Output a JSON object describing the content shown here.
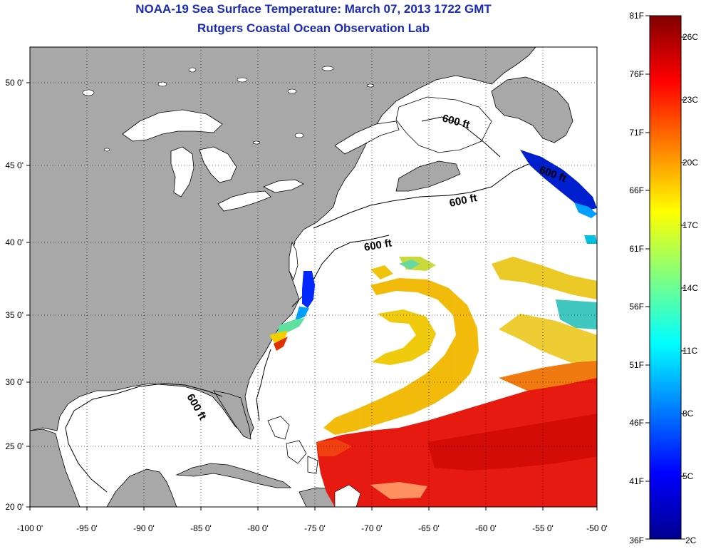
{
  "header": {
    "title_line1": "NOAA-19 Sea Surface Temperature:  March 07, 2013 1722 GMT",
    "title_line2": "Rutgers Coastal Ocean Observation Lab"
  },
  "map": {
    "lon_range": [
      -100,
      -50
    ],
    "lat_range": [
      20,
      52
    ],
    "lon_ticks": [
      {
        "value": -100,
        "label": "-100 0'"
      },
      {
        "value": -95,
        "label": "-95 0'"
      },
      {
        "value": -90,
        "label": "-90 0'"
      },
      {
        "value": -85,
        "label": "-85 0'"
      },
      {
        "value": -80,
        "label": "-80 0'"
      },
      {
        "value": -75,
        "label": "-75 0'"
      },
      {
        "value": -70,
        "label": "-70 0'"
      },
      {
        "value": -65,
        "label": "-65 0'"
      },
      {
        "value": -60,
        "label": "-60 0'"
      },
      {
        "value": -55,
        "label": "-55 0'"
      },
      {
        "value": -50,
        "label": "-50 0'"
      }
    ],
    "lat_ticks": [
      {
        "value": 20,
        "label": "20 0'"
      },
      {
        "value": 25,
        "label": "25 0'"
      },
      {
        "value": 30,
        "label": "30 0'"
      },
      {
        "value": 35,
        "label": "35 0'"
      },
      {
        "value": 40,
        "label": "40 0'"
      },
      {
        "value": 45,
        "label": "45 0'"
      },
      {
        "value": 50,
        "label": "50 0'"
      }
    ],
    "contour_labels": [
      "600 ft",
      "600 ft",
      "600 ft",
      "600 ft",
      "600 ft"
    ],
    "colors": {
      "land": "#a8a8a8",
      "ocean": "#ffffff",
      "grid": "#000000"
    }
  },
  "colorbar": {
    "fahrenheit_labels": [
      "81F",
      "76F",
      "71F",
      "66F",
      "61F",
      "56F",
      "51F",
      "46F",
      "41F",
      "36F"
    ],
    "celsius_labels": [
      "26C",
      "23C",
      "20C",
      "17C",
      "14C",
      "11C",
      "8C",
      "5C",
      "2C"
    ],
    "colormap": "jet"
  }
}
